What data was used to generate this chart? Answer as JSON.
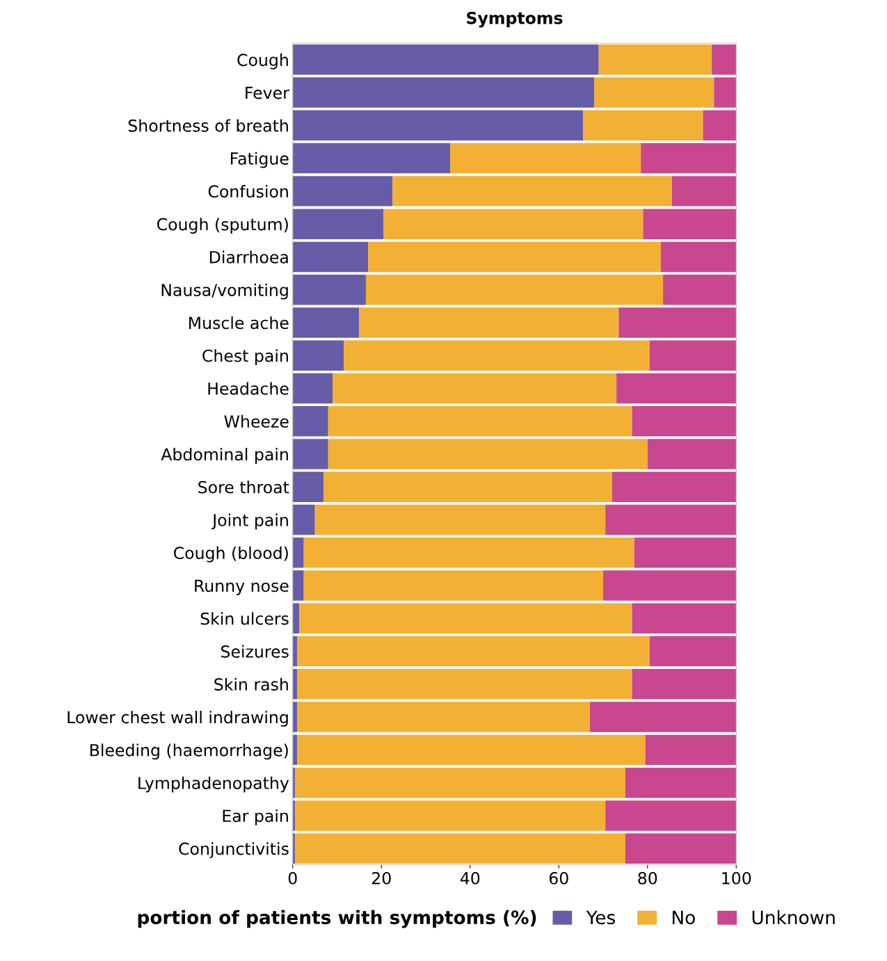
{
  "chart_data": {
    "type": "bar",
    "orientation": "horizontal",
    "stacked": true,
    "title": "Symptoms",
    "xlabel": "portion of patients with symptoms (%)",
    "categories": [
      "Cough",
      "Fever",
      "Shortness of breath",
      "Fatigue",
      "Confusion",
      "Cough (sputum)",
      "Diarrhoea",
      "Nausa/vomiting",
      "Muscle ache",
      "Chest pain",
      "Headache",
      "Wheeze",
      "Abdominal pain",
      "Sore throat",
      "Joint pain",
      "Cough (blood)",
      "Runny nose",
      "Skin ulcers",
      "Seizures",
      "Skin rash",
      "Lower chest wall indrawing",
      "Bleeding (haemorrhage)",
      "Lymphadenopathy",
      "Ear pain",
      "Conjunctivitis"
    ],
    "series": [
      {
        "name": "Yes",
        "color": "#665ca8",
        "values": [
          69,
          68,
          65.5,
          35.5,
          22.5,
          20.5,
          17,
          16.5,
          15,
          11.5,
          9,
          8,
          8,
          7,
          5,
          2.5,
          2.5,
          1.5,
          1,
          1,
          1,
          1,
          0.5,
          0.5,
          0.5
        ]
      },
      {
        "name": "No",
        "color": "#f2b134",
        "values": [
          25.5,
          27,
          27,
          43,
          63,
          58.5,
          66,
          67,
          58.5,
          69,
          64,
          68.5,
          72,
          65,
          65.5,
          74.5,
          67.5,
          75,
          79.5,
          75.5,
          66,
          78.5,
          74.5,
          70,
          74.5
        ]
      },
      {
        "name": "Unknown",
        "color": "#c8478f",
        "values": [
          5.5,
          5,
          7.5,
          21.5,
          14.5,
          21,
          17,
          16.5,
          26.5,
          19.5,
          27,
          23.5,
          20,
          28,
          29.5,
          23,
          30,
          23.5,
          19.5,
          23.5,
          33,
          20.5,
          25,
          29.5,
          25
        ]
      }
    ],
    "xlim": [
      0,
      100
    ],
    "xticks": [
      0,
      20,
      40,
      60,
      80,
      100
    ],
    "grid": false,
    "legend": "bottom right"
  }
}
